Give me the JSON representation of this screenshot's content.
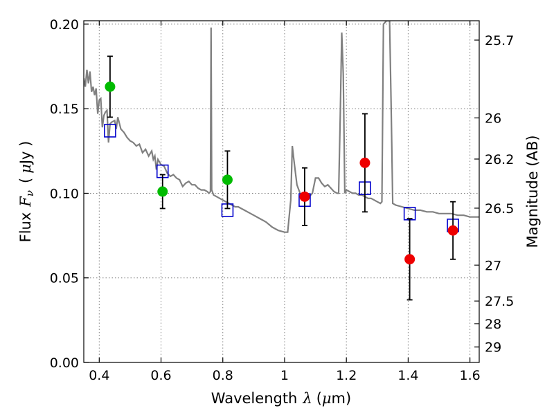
{
  "chart_data": {
    "type": "scatter",
    "xlabel_text": "Wavelength",
    "xlabel_sym": "λ",
    "xlabel_unit_open": "(",
    "xlabel_unit_mu": "μ",
    "xlabel_unit_rest": "m)",
    "ylabel_text": "Flux",
    "ylabel_sym": "F",
    "ylabel_sub": "ν",
    "ylabel_unit_open": "(",
    "ylabel_unit_mu": "μ",
    "ylabel_unit_rest": "Jy )",
    "y2label": "Magnitude (AB)",
    "xlim": [
      0.35,
      1.63
    ],
    "ylim": [
      0.0,
      0.202
    ],
    "grid": true,
    "x_ticks": [
      {
        "v": 0.4,
        "label": "0.4"
      },
      {
        "v": 0.6,
        "label": "0.6"
      },
      {
        "v": 0.8,
        "label": "0.8"
      },
      {
        "v": 1.0,
        "label": "1"
      },
      {
        "v": 1.2,
        "label": "1.2"
      },
      {
        "v": 1.4,
        "label": "1.4"
      },
      {
        "v": 1.6,
        "label": "1.6"
      }
    ],
    "y_ticks": [
      {
        "v": 0.0,
        "label": "0.00"
      },
      {
        "v": 0.05,
        "label": "0.05"
      },
      {
        "v": 0.1,
        "label": "0.10"
      },
      {
        "v": 0.15,
        "label": "0.15"
      },
      {
        "v": 0.2,
        "label": "0.20"
      }
    ],
    "y2_ticks": [
      {
        "mag": 25.7,
        "label": "25.7"
      },
      {
        "mag": 26,
        "label": "26"
      },
      {
        "mag": 26.2,
        "label": "26.2"
      },
      {
        "mag": 26.5,
        "label": "26.5"
      },
      {
        "mag": 27,
        "label": "27"
      },
      {
        "mag": 27.5,
        "label": "27.5"
      },
      {
        "mag": 28,
        "label": "28"
      },
      {
        "mag": 29,
        "label": "29"
      }
    ],
    "colors": {
      "spectrum": "#808080",
      "green": "#00bb00",
      "red": "#ee0000",
      "model": "#0000cc",
      "errorbar": "#000000"
    },
    "spectrum": [
      [
        0.35,
        0.168
      ],
      [
        0.355,
        0.163
      ],
      [
        0.36,
        0.173
      ],
      [
        0.365,
        0.165
      ],
      [
        0.37,
        0.172
      ],
      [
        0.375,
        0.16
      ],
      [
        0.38,
        0.163
      ],
      [
        0.385,
        0.158
      ],
      [
        0.39,
        0.162
      ],
      [
        0.395,
        0.147
      ],
      [
        0.4,
        0.155
      ],
      [
        0.405,
        0.156
      ],
      [
        0.41,
        0.139
      ],
      [
        0.415,
        0.146
      ],
      [
        0.42,
        0.148
      ],
      [
        0.425,
        0.149
      ],
      [
        0.43,
        0.13
      ],
      [
        0.435,
        0.141
      ],
      [
        0.44,
        0.142
      ],
      [
        0.45,
        0.143
      ],
      [
        0.455,
        0.138
      ],
      [
        0.46,
        0.145
      ],
      [
        0.47,
        0.138
      ],
      [
        0.48,
        0.136
      ],
      [
        0.49,
        0.133
      ],
      [
        0.5,
        0.131
      ],
      [
        0.51,
        0.13
      ],
      [
        0.52,
        0.128
      ],
      [
        0.53,
        0.129
      ],
      [
        0.54,
        0.124
      ],
      [
        0.55,
        0.126
      ],
      [
        0.56,
        0.122
      ],
      [
        0.57,
        0.125
      ],
      [
        0.575,
        0.12
      ],
      [
        0.58,
        0.122
      ],
      [
        0.585,
        0.114
      ],
      [
        0.59,
        0.12
      ],
      [
        0.6,
        0.117
      ],
      [
        0.61,
        0.116
      ],
      [
        0.62,
        0.112
      ],
      [
        0.63,
        0.11
      ],
      [
        0.64,
        0.111
      ],
      [
        0.65,
        0.109
      ],
      [
        0.66,
        0.108
      ],
      [
        0.67,
        0.104
      ],
      [
        0.68,
        0.106
      ],
      [
        0.69,
        0.107
      ],
      [
        0.7,
        0.105
      ],
      [
        0.71,
        0.105
      ],
      [
        0.72,
        0.103
      ],
      [
        0.73,
        0.102
      ],
      [
        0.74,
        0.102
      ],
      [
        0.75,
        0.101
      ],
      [
        0.755,
        0.1
      ],
      [
        0.76,
        0.101
      ],
      [
        0.762,
        0.198
      ],
      [
        0.764,
        0.102
      ],
      [
        0.77,
        0.099
      ],
      [
        0.78,
        0.098
      ],
      [
        0.79,
        0.097
      ],
      [
        0.8,
        0.096
      ],
      [
        0.81,
        0.095
      ],
      [
        0.82,
        0.094
      ],
      [
        0.83,
        0.093
      ],
      [
        0.84,
        0.092
      ],
      [
        0.85,
        0.092
      ],
      [
        0.86,
        0.091
      ],
      [
        0.87,
        0.09
      ],
      [
        0.88,
        0.089
      ],
      [
        0.9,
        0.087
      ],
      [
        0.92,
        0.085
      ],
      [
        0.94,
        0.083
      ],
      [
        0.96,
        0.08
      ],
      [
        0.98,
        0.078
      ],
      [
        1.0,
        0.077
      ],
      [
        1.01,
        0.077
      ],
      [
        1.02,
        0.096
      ],
      [
        1.025,
        0.128
      ],
      [
        1.03,
        0.12
      ],
      [
        1.04,
        0.105
      ],
      [
        1.05,
        0.1
      ],
      [
        1.06,
        0.098
      ],
      [
        1.07,
        0.097
      ],
      [
        1.08,
        0.098
      ],
      [
        1.09,
        0.1
      ],
      [
        1.1,
        0.109
      ],
      [
        1.11,
        0.109
      ],
      [
        1.12,
        0.106
      ],
      [
        1.13,
        0.104
      ],
      [
        1.14,
        0.105
      ],
      [
        1.15,
        0.103
      ],
      [
        1.16,
        0.101
      ],
      [
        1.17,
        0.1
      ],
      [
        1.175,
        0.1
      ],
      [
        1.18,
        0.145
      ],
      [
        1.185,
        0.195
      ],
      [
        1.19,
        0.17
      ],
      [
        1.195,
        0.1
      ],
      [
        1.2,
        0.102
      ],
      [
        1.21,
        0.101
      ],
      [
        1.22,
        0.1
      ],
      [
        1.23,
        0.1
      ],
      [
        1.24,
        0.099
      ],
      [
        1.25,
        0.099
      ],
      [
        1.26,
        0.098
      ],
      [
        1.27,
        0.097
      ],
      [
        1.28,
        0.097
      ],
      [
        1.29,
        0.096
      ],
      [
        1.3,
        0.095
      ],
      [
        1.31,
        0.094
      ],
      [
        1.315,
        0.095
      ],
      [
        1.32,
        0.2
      ],
      [
        1.33,
        0.202
      ],
      [
        1.34,
        0.202
      ],
      [
        1.345,
        0.15
      ],
      [
        1.35,
        0.094
      ],
      [
        1.36,
        0.093
      ],
      [
        1.38,
        0.092
      ],
      [
        1.4,
        0.091
      ],
      [
        1.42,
        0.09
      ],
      [
        1.44,
        0.09
      ],
      [
        1.46,
        0.089
      ],
      [
        1.48,
        0.089
      ],
      [
        1.5,
        0.088
      ],
      [
        1.52,
        0.088
      ],
      [
        1.54,
        0.088
      ],
      [
        1.56,
        0.087
      ],
      [
        1.58,
        0.087
      ],
      [
        1.6,
        0.086
      ],
      [
        1.63,
        0.086
      ]
    ],
    "observed_green": [
      {
        "x": 0.435,
        "y": 0.163,
        "err": 0.018
      },
      {
        "x": 0.605,
        "y": 0.101,
        "err": 0.01
      },
      {
        "x": 0.815,
        "y": 0.108,
        "err": 0.017
      }
    ],
    "observed_red": [
      {
        "x": 1.065,
        "y": 0.098,
        "err": 0.017
      },
      {
        "x": 1.26,
        "y": 0.118,
        "err": 0.029
      },
      {
        "x": 1.405,
        "y": 0.061,
        "err": 0.024
      },
      {
        "x": 1.545,
        "y": 0.078,
        "err": 0.017
      }
    ],
    "model_points": [
      {
        "x": 0.435,
        "y": 0.137
      },
      {
        "x": 0.605,
        "y": 0.113
      },
      {
        "x": 0.815,
        "y": 0.09
      },
      {
        "x": 1.065,
        "y": 0.096
      },
      {
        "x": 1.26,
        "y": 0.103
      },
      {
        "x": 1.405,
        "y": 0.088
      },
      {
        "x": 1.545,
        "y": 0.081
      }
    ]
  }
}
